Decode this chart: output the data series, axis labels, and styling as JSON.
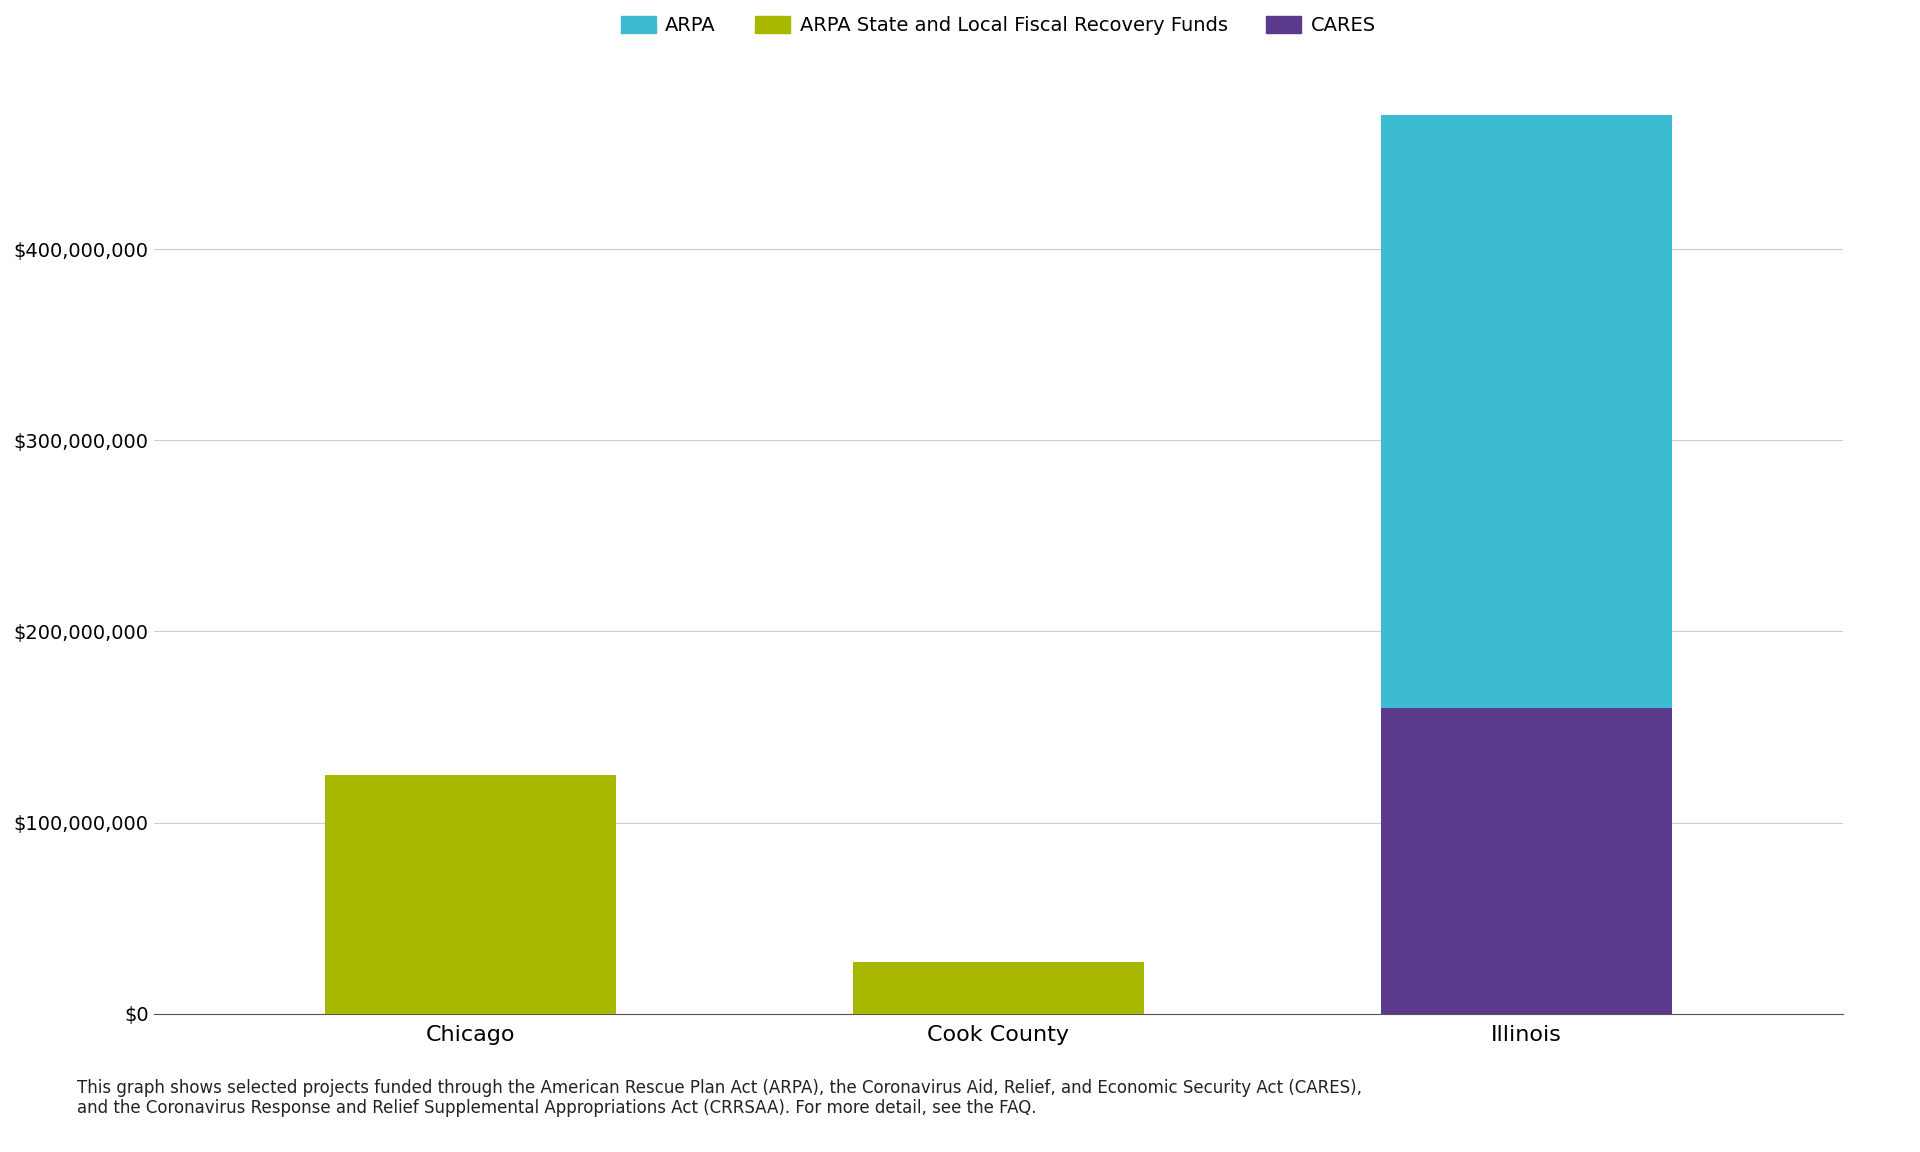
{
  "categories": [
    "Chicago",
    "Cook County",
    "Illinois"
  ],
  "series": {
    "ARPA": {
      "values": [
        0,
        0,
        310000000
      ],
      "color": "#3bbcd0"
    },
    "ARPA State and Local Fiscal Recovery Funds": {
      "values": [
        125000000,
        27000000,
        0
      ],
      "color": "#a8b800"
    },
    "CARES": {
      "values": [
        0,
        0,
        160000000
      ],
      "color": "#5b3a8c"
    }
  },
  "ylim": [
    0,
    470000000
  ],
  "yticks": [
    0,
    100000000,
    200000000,
    300000000,
    400000000
  ],
  "ytick_labels": [
    "$0",
    "$100,000,000",
    "$200,000,000",
    "$300,000,000",
    "$400,000,000"
  ],
  "legend_order": [
    "ARPA",
    "ARPA State and Local Fiscal Recovery Funds",
    "CARES"
  ],
  "footnote": "This graph shows selected projects funded through the American Rescue Plan Act (ARPA), the Coronavirus Aid, Relief, and Economic Security Act (CARES),\nand the Coronavirus Response and Relief Supplemental Appropriations Act (CRRSAA). For more detail, see the FAQ.",
  "background_color": "#ffffff",
  "grid_color": "#cccccc",
  "bar_width": 0.55,
  "label_fontsize": 14,
  "tick_fontsize": 14,
  "legend_fontsize": 14,
  "footnote_fontsize": 12
}
